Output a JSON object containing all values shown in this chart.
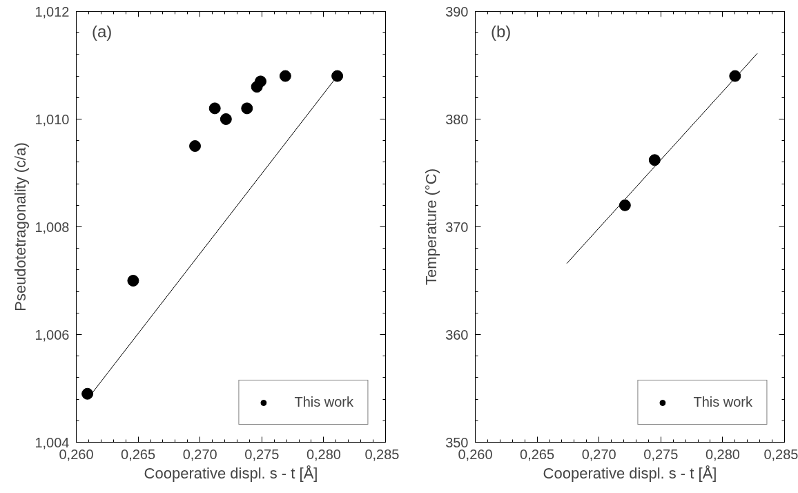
{
  "chart_data": [
    {
      "type": "scatter",
      "xlabel": "Cooperative displ. s - t [Å]",
      "ylabel": "Pseudotetragonality (c/a)",
      "annotations": [
        "(a)"
      ],
      "legend": "bottom right",
      "grid": false,
      "xlim": [
        0.26,
        0.285
      ],
      "xticks": [
        {
          "value": 0.26,
          "label": "0,260"
        },
        {
          "value": 0.265,
          "label": "0,265"
        },
        {
          "value": 0.27,
          "label": "0,270"
        },
        {
          "value": 0.275,
          "label": "0,275"
        },
        {
          "value": 0.28,
          "label": "0,280"
        },
        {
          "value": 0.285,
          "label": "0,285"
        }
      ],
      "ylim": [
        1.004,
        1.012
      ],
      "yticks": [
        {
          "value": 1.004,
          "label": "1,004"
        },
        {
          "value": 1.006,
          "label": "1,006"
        },
        {
          "value": 1.008,
          "label": "1,008"
        },
        {
          "value": 1.01,
          "label": "1,010"
        },
        {
          "value": 1.012,
          "label": "1,012"
        }
      ],
      "series": [
        {
          "name": "This work",
          "marker": "circle",
          "color": "#000000",
          "x": [
            0.2609,
            0.2646,
            0.2696,
            0.2712,
            0.2721,
            0.2738,
            0.2746,
            0.2749,
            0.2769,
            0.2811
          ],
          "values": [
            1.0049,
            1.007,
            1.0095,
            1.0102,
            1.01,
            1.0102,
            1.0106,
            1.0107,
            1.0108,
            1.0108
          ]
        },
        {
          "type": "line",
          "color": "#000000",
          "x": [
            0.2609,
            0.2811
          ],
          "values": [
            1.0048,
            1.0108
          ]
        }
      ]
    },
    {
      "type": "scatter",
      "xlabel": "Cooperative displ. s - t [Å]",
      "ylabel": "Temperature (°C)",
      "annotations": [
        "(b)"
      ],
      "legend": "bottom right",
      "grid": false,
      "xlim": [
        0.26,
        0.285
      ],
      "xticks": [
        {
          "value": 0.26,
          "label": "0,260"
        },
        {
          "value": 0.265,
          "label": "0,265"
        },
        {
          "value": 0.27,
          "label": "0,270"
        },
        {
          "value": 0.275,
          "label": "0,275"
        },
        {
          "value": 0.28,
          "label": "0,280"
        },
        {
          "value": 0.285,
          "label": "0,285"
        }
      ],
      "ylim": [
        350,
        390
      ],
      "yticks": [
        350,
        360,
        370,
        380,
        390
      ],
      "series": [
        {
          "name": "This work",
          "marker": "circle",
          "color": "#000000",
          "x": [
            0.2721,
            0.2745,
            0.281
          ],
          "values": [
            372.0,
            376.2,
            384.0
          ]
        },
        {
          "type": "line",
          "color": "#000000",
          "x": [
            0.2674,
            0.2828
          ],
          "values": [
            366.6,
            386.1
          ]
        }
      ]
    }
  ]
}
